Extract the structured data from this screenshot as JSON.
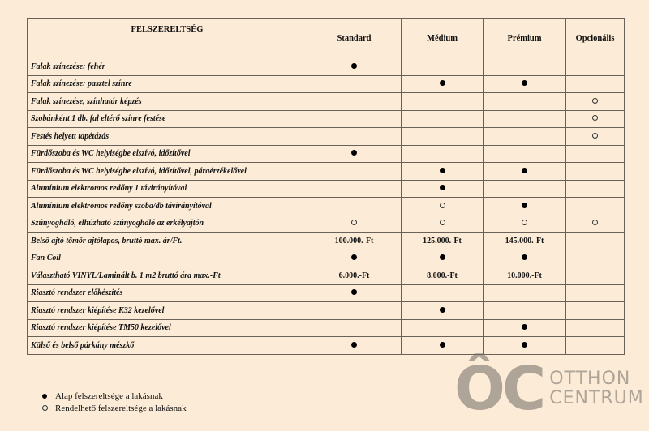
{
  "header": {
    "feature": "FELSZERELTSÉG",
    "cols": [
      "Standard",
      "Médium",
      "Prémium",
      "Opcionális"
    ]
  },
  "rows": [
    {
      "label": "Falak színezése: fehér",
      "vals": [
        "filled",
        "",
        "",
        ""
      ]
    },
    {
      "label": "Falak színezése: pasztel színre",
      "vals": [
        "",
        "filled",
        "filled",
        ""
      ]
    },
    {
      "label": "Falak színezése, színhatár képzés",
      "vals": [
        "",
        "",
        "",
        "open"
      ]
    },
    {
      "label": "Szobánként 1 db. fal eltérő színre festése",
      "vals": [
        "",
        "",
        "",
        "open"
      ]
    },
    {
      "label": "Festés helyett tapétázás",
      "vals": [
        "",
        "",
        "",
        "open"
      ]
    },
    {
      "label": "Fürdőszoba és WC helyiségbe elszívó, időzítővel",
      "vals": [
        "filled",
        "",
        "",
        ""
      ]
    },
    {
      "label": "Fürdőszoba és WC helyiségbe elszívó, időzítővel, páraérzékelővel",
      "vals": [
        "",
        "filled",
        "filled",
        ""
      ]
    },
    {
      "label": "Alumínium elektromos redőny 1 távirányítóval",
      "vals": [
        "",
        "filled",
        "",
        ""
      ]
    },
    {
      "label": "Alumínium elektromos redőny szoba/db távirányítóval",
      "vals": [
        "",
        "open",
        "filled",
        ""
      ]
    },
    {
      "label": "Szúnyogháló, elhúzható szúnyogháló az erkélyajtón",
      "vals": [
        "open",
        "open",
        "open",
        "open"
      ]
    },
    {
      "label": "Belső ajtó tömör ajtólapos, bruttó max. ár/Ft.",
      "vals": [
        "100.000.-Ft",
        "125.000.-Ft",
        "145.000.-Ft",
        ""
      ]
    },
    {
      "label": "Fan Coil",
      "vals": [
        "filled",
        "filled",
        "filled",
        ""
      ]
    },
    {
      "label": "Választható VINYL/Laminált b. 1 m2 bruttó ára max.-Ft",
      "vals": [
        "6.000.-Ft",
        "8.000.-Ft",
        "10.000.-Ft",
        ""
      ]
    },
    {
      "label": "Riasztó rendszer előkészítés",
      "vals": [
        "filled",
        "",
        "",
        ""
      ]
    },
    {
      "label": "Riasztó rendszer kiépítése K32 kezelővel",
      "vals": [
        "",
        "filled",
        "",
        ""
      ]
    },
    {
      "label": "Riasztó rendszer kiépítése TM50 kezelővel",
      "vals": [
        "",
        "",
        "filled",
        ""
      ]
    },
    {
      "label": "Külső és belső párkány mészkő",
      "vals": [
        "filled",
        "filled",
        "filled",
        ""
      ]
    }
  ],
  "watermark": {
    "logo": "ÔC",
    "line1": "OTTHON",
    "line2": "CENTRUM"
  },
  "legend": [
    {
      "marker": "filled",
      "text": "Alap felszereltsége a lakásnak"
    },
    {
      "marker": "open",
      "text": "Rendelhető felszereltsége a lakásnak"
    }
  ]
}
